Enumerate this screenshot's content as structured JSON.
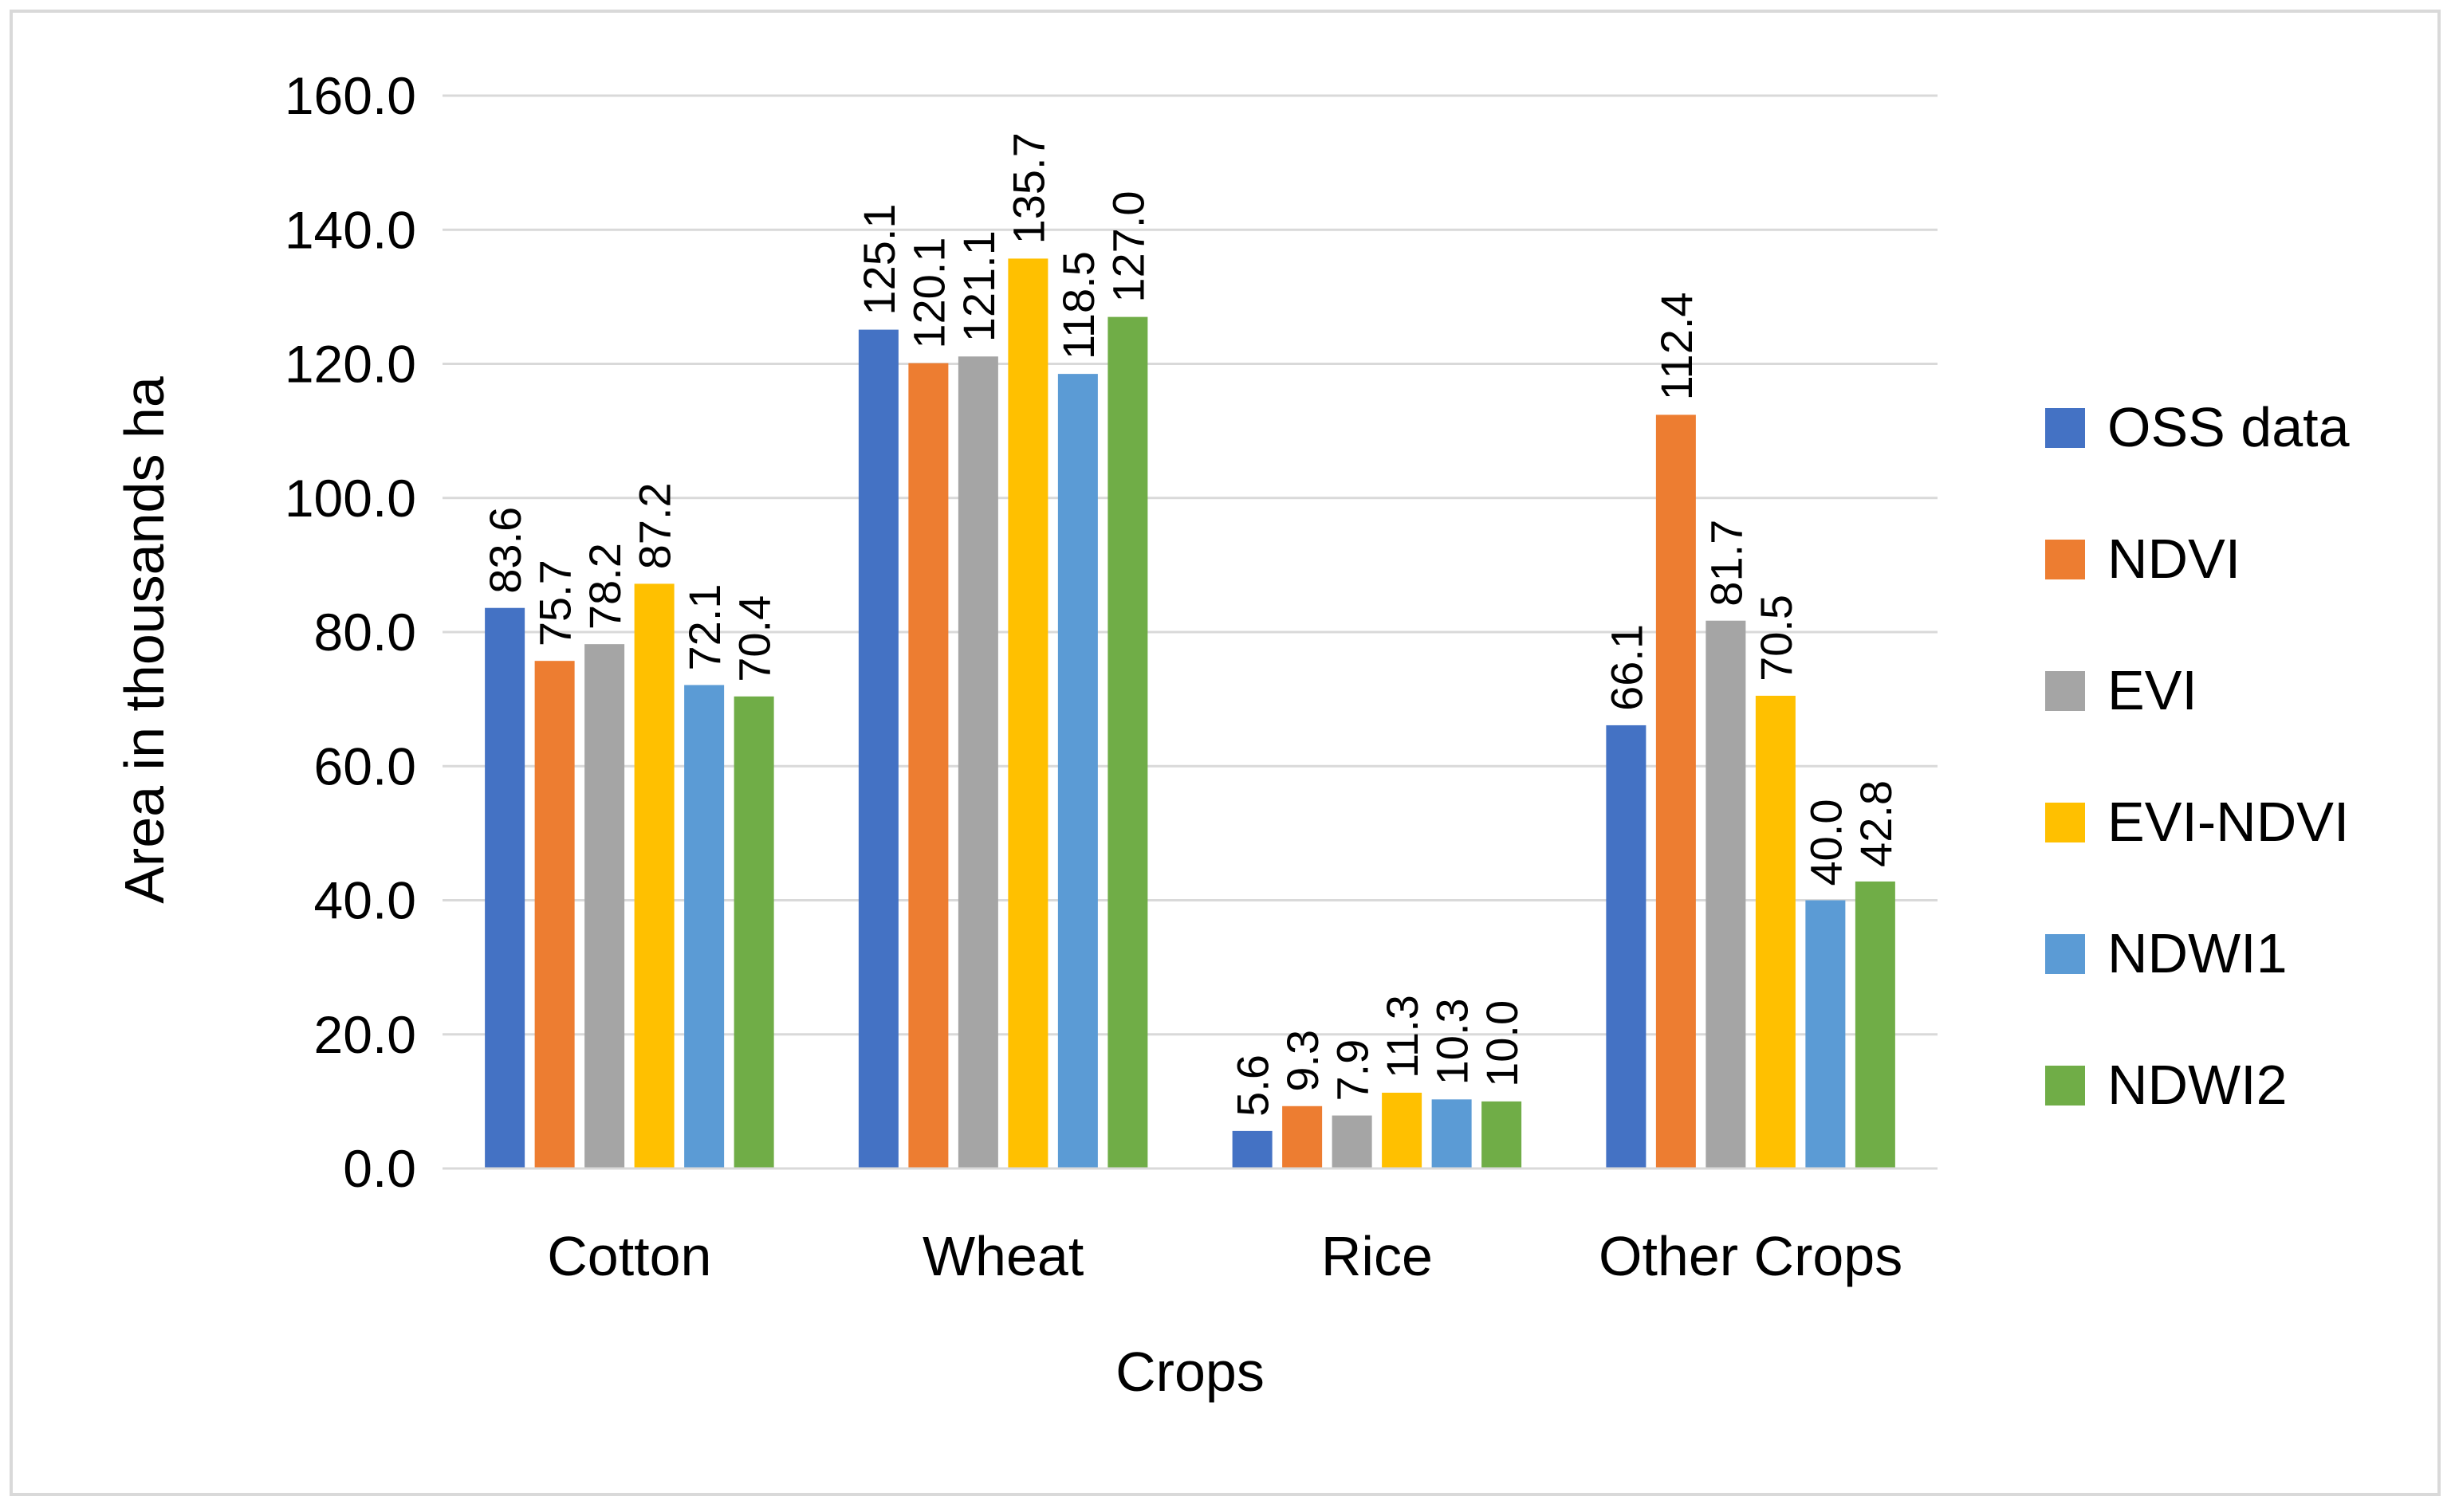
{
  "chart_data": {
    "type": "bar",
    "title": "",
    "xlabel": "Crops",
    "ylabel": "Area in thousands ha",
    "ylim": [
      0,
      160
    ],
    "yticks": [
      "0.0",
      "20.0",
      "40.0",
      "60.0",
      "80.0",
      "100.0",
      "120.0",
      "140.0",
      "160.0"
    ],
    "grid": true,
    "legend_position": "right",
    "categories": [
      "Cotton",
      "Wheat",
      "Rice",
      "Other Crops"
    ],
    "series": [
      {
        "name": "OSS data",
        "color": "#4472c4",
        "values": [
          83.6,
          125.1,
          5.6,
          66.1
        ],
        "labels": [
          "83.6",
          "125.1",
          "5.6",
          "66.1"
        ]
      },
      {
        "name": "NDVI",
        "color": "#ed7d31",
        "values": [
          75.7,
          120.1,
          9.3,
          112.4
        ],
        "labels": [
          "75.7",
          "120.1",
          "9.3",
          "112.4"
        ]
      },
      {
        "name": "EVI",
        "color": "#a5a5a5",
        "values": [
          78.2,
          121.1,
          7.9,
          81.7
        ],
        "labels": [
          "78.2",
          "121.1",
          "7.9",
          "81.7"
        ]
      },
      {
        "name": "EVI-NDVI",
        "color": "#ffc000",
        "values": [
          87.2,
          135.7,
          11.3,
          70.5
        ],
        "labels": [
          "87.2",
          "135.7",
          "11.3",
          "70.5"
        ]
      },
      {
        "name": "NDWI1",
        "color": "#5b9bd5",
        "values": [
          72.1,
          118.5,
          10.3,
          40.0
        ],
        "labels": [
          "72.1",
          "118.5",
          "10.3",
          "40.0"
        ]
      },
      {
        "name": "NDWI2",
        "color": "#70ad47",
        "values": [
          70.4,
          127.0,
          10.0,
          42.8
        ],
        "labels": [
          "70.4",
          "127.0",
          "10.0",
          "42.8"
        ]
      }
    ]
  }
}
